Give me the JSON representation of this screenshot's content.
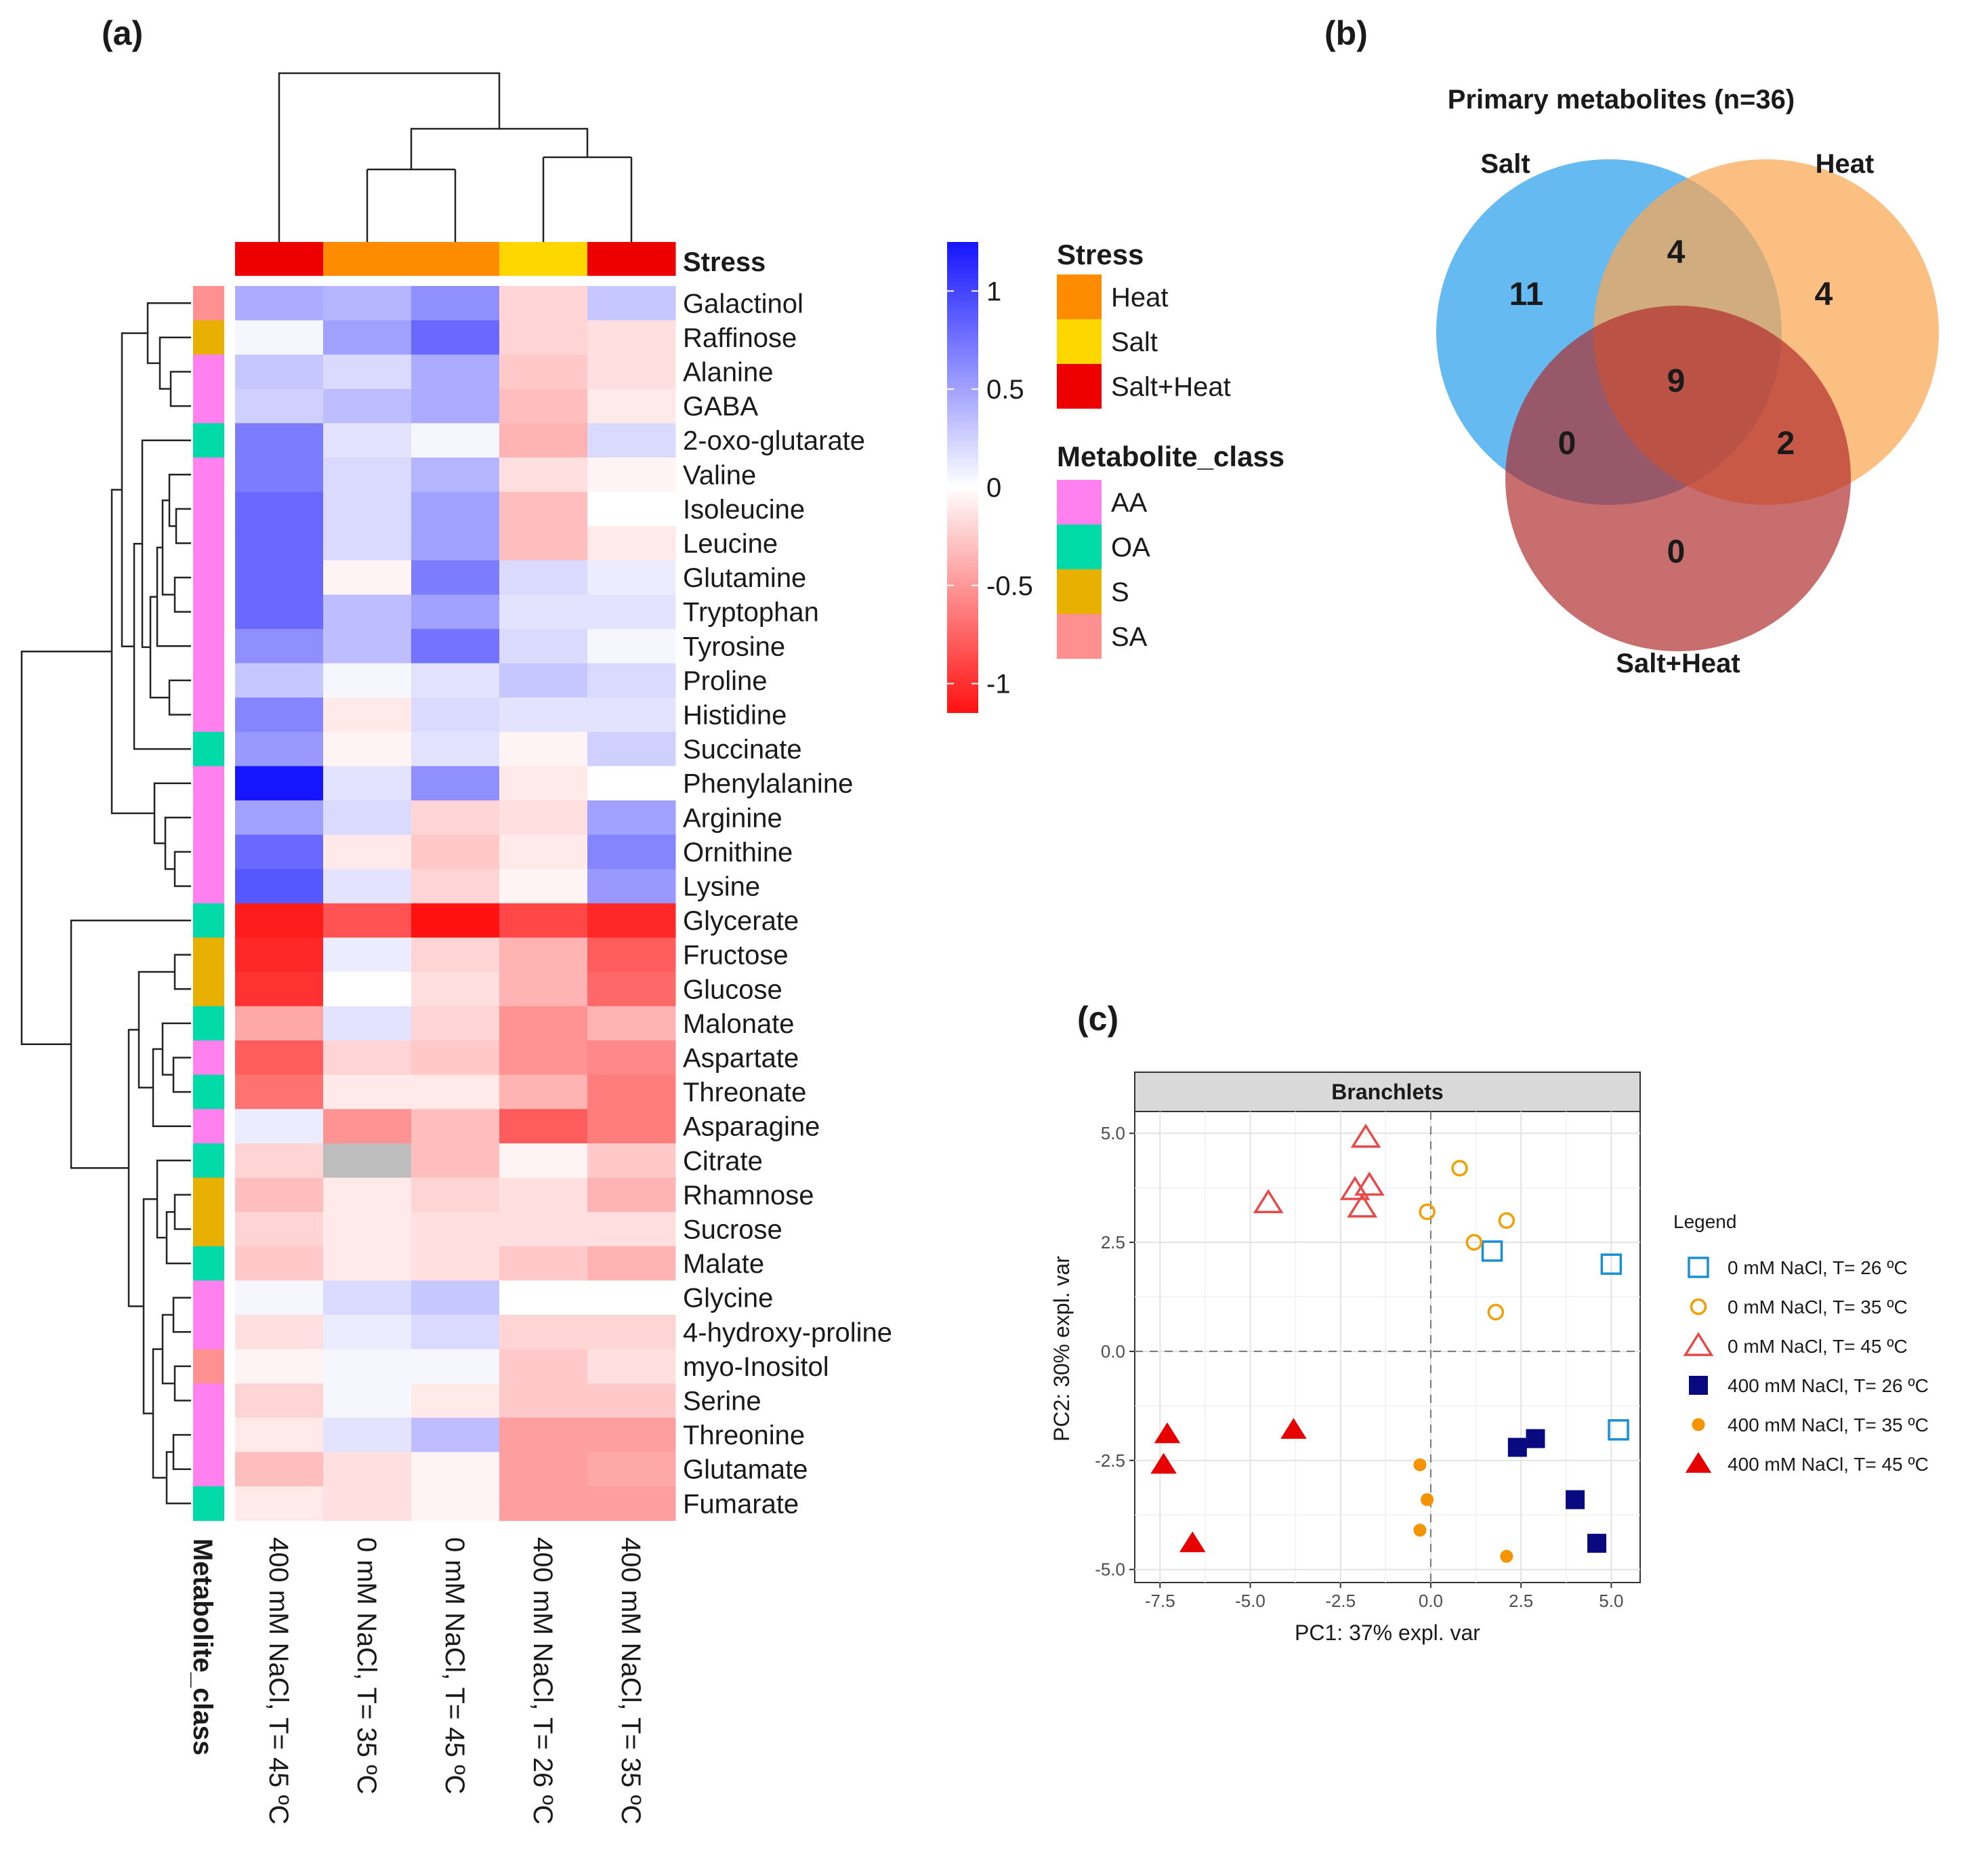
{
  "panels": {
    "a": "(a)",
    "b": "(b)",
    "c": "(c)"
  },
  "chart_data": [
    {
      "type": "heatmap",
      "panel": "(a)",
      "columns": [
        "400 mM NaCl, T= 45 ºC",
        "0 mM NaCl, T= 35 ºC",
        "0 mM NaCl, T= 45 ºC",
        "400 mM NaCl, T= 26 ºC",
        "400 mM NaCl, T= 35 ºC"
      ],
      "column_stress": [
        "Salt+Heat",
        "Heat",
        "Heat",
        "Salt",
        "Salt+Heat"
      ],
      "column_annotation_title": "Stress",
      "row_annotation_title": "Metabolite_class",
      "rows": [
        "Galactinol",
        "Raffinose",
        "Alanine",
        "GABA",
        "2-oxo-glutarate",
        "Valine",
        "Isoleucine",
        "Leucine",
        "Glutamine",
        "Tryptophan",
        "Tyrosine",
        "Proline",
        "Histidine",
        "Succinate",
        "Phenylalanine",
        "Arginine",
        "Ornithine",
        "Lysine",
        "Glycerate",
        "Fructose",
        "Glucose",
        "Malonate",
        "Aspartate",
        "Threonate",
        "Asparagine",
        "Citrate",
        "Rhamnose",
        "Sucrose",
        "Malate",
        "Glycine",
        "4-hydroxy-proline",
        "myo-Inositol",
        "Serine",
        "Threonine",
        "Glutamate",
        "Fumarate"
      ],
      "row_class": [
        "SA",
        "S",
        "AA",
        "AA",
        "OA",
        "AA",
        "AA",
        "AA",
        "AA",
        "AA",
        "AA",
        "AA",
        "AA",
        "OA",
        "AA",
        "AA",
        "AA",
        "AA",
        "OA",
        "S",
        "S",
        "OA",
        "AA",
        "OA",
        "AA",
        "OA",
        "S",
        "S",
        "OA",
        "AA",
        "AA",
        "SA",
        "AA",
        "AA",
        "AA",
        "OA"
      ],
      "values": [
        [
          0.45,
          0.4,
          0.6,
          -0.2,
          0.3
        ],
        [
          0.05,
          0.5,
          0.8,
          -0.2,
          -0.15
        ],
        [
          0.3,
          0.2,
          0.45,
          -0.25,
          -0.15
        ],
        [
          0.25,
          0.35,
          0.45,
          -0.3,
          -0.1
        ],
        [
          0.7,
          0.15,
          0.05,
          -0.35,
          0.2
        ],
        [
          0.7,
          0.2,
          0.4,
          -0.15,
          -0.05
        ],
        [
          0.8,
          0.2,
          0.5,
          -0.3,
          0.0
        ],
        [
          0.8,
          0.2,
          0.5,
          -0.3,
          -0.1
        ],
        [
          0.8,
          -0.05,
          0.7,
          0.2,
          0.1
        ],
        [
          0.8,
          0.35,
          0.5,
          0.15,
          0.15
        ],
        [
          0.6,
          0.35,
          0.75,
          0.2,
          0.05
        ],
        [
          0.3,
          0.05,
          0.15,
          0.3,
          0.2
        ],
        [
          0.65,
          -0.1,
          0.2,
          0.15,
          0.15
        ],
        [
          0.55,
          -0.05,
          0.15,
          -0.05,
          0.25
        ],
        [
          1.25,
          0.15,
          0.6,
          -0.1,
          0.0
        ],
        [
          0.5,
          0.2,
          -0.2,
          -0.15,
          0.5
        ],
        [
          0.8,
          -0.1,
          -0.25,
          -0.1,
          0.65
        ],
        [
          0.9,
          0.15,
          -0.2,
          -0.05,
          0.55
        ],
        [
          -1.05,
          -0.8,
          -1.1,
          -0.85,
          -1.0
        ],
        [
          -1.0,
          0.1,
          -0.2,
          -0.35,
          -0.75
        ],
        [
          -0.95,
          0.0,
          -0.15,
          -0.35,
          -0.7
        ],
        [
          -0.4,
          0.15,
          -0.2,
          -0.5,
          -0.35
        ],
        [
          -0.75,
          -0.2,
          -0.25,
          -0.5,
          -0.55
        ],
        [
          -0.65,
          -0.1,
          -0.1,
          -0.35,
          -0.6
        ],
        [
          0.1,
          -0.5,
          -0.3,
          -0.75,
          -0.6
        ],
        [
          -0.2,
          null,
          -0.3,
          -0.05,
          -0.25
        ],
        [
          -0.3,
          -0.1,
          -0.2,
          -0.15,
          -0.35
        ],
        [
          -0.2,
          -0.1,
          -0.15,
          -0.15,
          -0.15
        ],
        [
          -0.25,
          -0.1,
          -0.15,
          -0.25,
          -0.35
        ],
        [
          0.05,
          0.2,
          0.3,
          0.0,
          0.0
        ],
        [
          -0.15,
          0.1,
          0.2,
          -0.2,
          -0.2
        ],
        [
          -0.05,
          0.05,
          0.05,
          -0.25,
          -0.15
        ],
        [
          -0.2,
          0.05,
          -0.1,
          -0.25,
          -0.25
        ],
        [
          -0.1,
          0.15,
          0.35,
          -0.45,
          -0.45
        ],
        [
          -0.3,
          -0.15,
          -0.05,
          -0.45,
          -0.4
        ],
        [
          -0.1,
          -0.15,
          -0.05,
          -0.45,
          -0.45
        ]
      ],
      "na_color": "#bdbdbd",
      "color_scale": {
        "ticks": [
          "1",
          "0.5",
          "0",
          "-0.5",
          "-1"
        ],
        "tick_values": [
          1,
          0.5,
          0,
          -0.5,
          -1
        ],
        "min": -1.15,
        "max": 1.25
      },
      "stress_legend": [
        {
          "label": "Heat",
          "color": "#ff8c00"
        },
        {
          "label": "Salt",
          "color": "#ffd700"
        },
        {
          "label": "Salt+Heat",
          "color": "#ee0000"
        }
      ],
      "class_legend": [
        {
          "label": "AA",
          "color": "#ff80ee"
        },
        {
          "label": "OA",
          "color": "#00d9a8"
        },
        {
          "label": "S",
          "color": "#e8b000"
        },
        {
          "label": "SA",
          "color": "#ff9090"
        }
      ],
      "column_dendrogram_merges": [
        [
          2,
          3
        ],
        [
          4,
          5
        ],
        [
          1,
          2
        ],
        [
          0,
          1
        ]
      ],
      "row_dendrogram": "hierarchical clustering (drawn)"
    },
    {
      "type": "venn",
      "panel": "(b)",
      "title": "Primary metabolites (n=36)",
      "sets": [
        {
          "name": "Salt",
          "color": "#4aaef0"
        },
        {
          "name": "Heat",
          "color": "#fba652"
        },
        {
          "name": "Salt+Heat",
          "color": "#c43a3a"
        }
      ],
      "regions": {
        "salt_only": 11,
        "heat_only": 4,
        "saltheat_only": 0,
        "salt_heat": 4,
        "salt_saltheat": 0,
        "heat_saltheat": 2,
        "all": 9
      }
    },
    {
      "type": "scatter",
      "panel": "(c)",
      "facet": "Branchlets",
      "xlabel": "PC1: 37% expl. var",
      "ylabel": "PC2: 30% expl. var",
      "xlim": [
        -8.2,
        5.8
      ],
      "ylim": [
        -5.3,
        5.5
      ],
      "xticks": [
        -7.5,
        -5.0,
        -2.5,
        0.0,
        2.5,
        5.0
      ],
      "xtick_labels": [
        "-7.5",
        "-5.0",
        "-2.5",
        "0.0",
        "2.5",
        "5.0"
      ],
      "yticks": [
        -5.0,
        -2.5,
        0.0,
        2.5,
        5.0
      ],
      "ytick_labels": [
        "-5.0",
        "-2.5",
        "0.0",
        "2.5",
        "5.0"
      ],
      "legend_title": "Legend",
      "series": [
        {
          "name": "0 mM NaCl, T= 26 ºC",
          "marker": "square-open",
          "color": "#1a8fd6",
          "points": [
            [
              1.7,
              2.3
            ],
            [
              5.0,
              2.0
            ],
            [
              5.2,
              -1.8
            ]
          ]
        },
        {
          "name": "0 mM NaCl, T= 35 ºC",
          "marker": "circle-open",
          "color": "#f0a000",
          "points": [
            [
              0.8,
              4.2
            ],
            [
              -0.1,
              3.2
            ],
            [
              2.1,
              3.0
            ],
            [
              1.2,
              2.5
            ],
            [
              1.8,
              0.9
            ]
          ]
        },
        {
          "name": "0 mM NaCl, T= 45 ºC",
          "marker": "triangle-open",
          "color": "#e64b4b",
          "points": [
            [
              -1.8,
              4.9
            ],
            [
              -4.5,
              3.4
            ],
            [
              -2.1,
              3.7
            ],
            [
              -1.7,
              3.8
            ],
            [
              -1.9,
              3.3
            ]
          ]
        },
        {
          "name": "400 mM NaCl, T= 26 ºC",
          "marker": "square",
          "color": "#0a0a80",
          "points": [
            [
              2.4,
              -2.2
            ],
            [
              2.9,
              -2.0
            ],
            [
              4.0,
              -3.4
            ],
            [
              4.6,
              -4.4
            ]
          ]
        },
        {
          "name": "400 mM NaCl, T= 35 ºC",
          "marker": "circle",
          "color": "#f39400",
          "points": [
            [
              -0.3,
              -2.6
            ],
            [
              -0.1,
              -3.4
            ],
            [
              -0.3,
              -4.1
            ],
            [
              2.1,
              -4.7
            ]
          ]
        },
        {
          "name": "400 mM NaCl, T= 45 ºC",
          "marker": "triangle",
          "color": "#e60000",
          "points": [
            [
              -7.3,
              -1.9
            ],
            [
              -3.8,
              -1.8
            ],
            [
              -7.4,
              -2.6
            ],
            [
              -6.6,
              -4.4
            ]
          ]
        }
      ]
    }
  ]
}
